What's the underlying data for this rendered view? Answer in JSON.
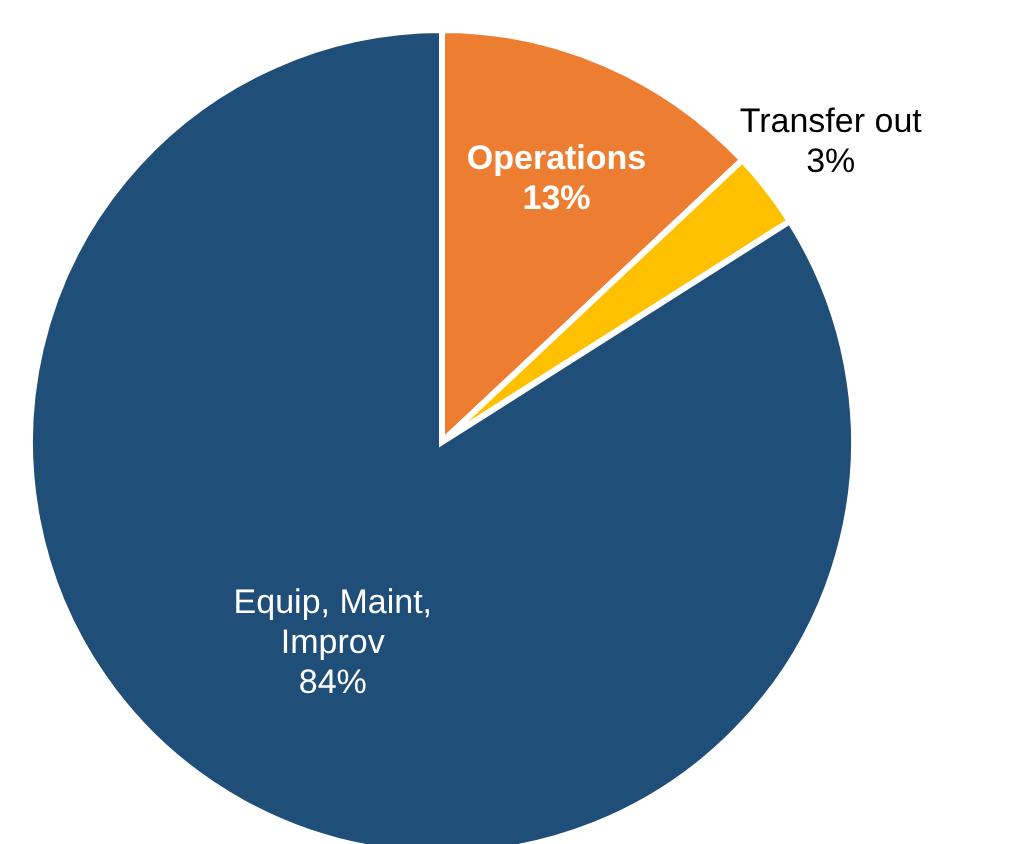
{
  "chart_data": {
    "type": "pie",
    "categories": [
      "Operations",
      "Transfer out",
      "Equip, Maint, Improv"
    ],
    "values": [
      13,
      3,
      84
    ],
    "colors": [
      "#ed7d31",
      "#ffc000",
      "#1f4e79"
    ],
    "value_labels": [
      "13%",
      "3%",
      "84%"
    ],
    "legend": false
  }
}
